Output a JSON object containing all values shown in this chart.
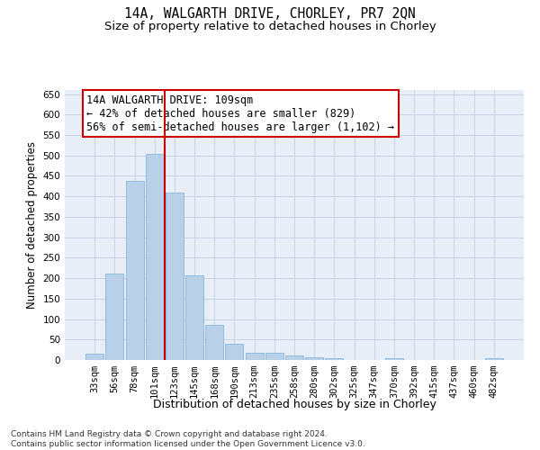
{
  "title": "14A, WALGARTH DRIVE, CHORLEY, PR7 2QN",
  "subtitle": "Size of property relative to detached houses in Chorley",
  "xlabel": "Distribution of detached houses by size in Chorley",
  "ylabel": "Number of detached properties",
  "categories": [
    "33sqm",
    "56sqm",
    "78sqm",
    "101sqm",
    "123sqm",
    "145sqm",
    "168sqm",
    "190sqm",
    "213sqm",
    "235sqm",
    "258sqm",
    "280sqm",
    "302sqm",
    "325sqm",
    "347sqm",
    "370sqm",
    "392sqm",
    "415sqm",
    "437sqm",
    "460sqm",
    "482sqm"
  ],
  "values": [
    15,
    212,
    437,
    503,
    410,
    207,
    85,
    39,
    18,
    17,
    11,
    6,
    5,
    0,
    0,
    5,
    0,
    0,
    0,
    0,
    5
  ],
  "bar_color": "#b8d0e8",
  "bar_edge_color": "#7aafd4",
  "grid_color": "#c8d4e4",
  "background_color": "#e8eef8",
  "vline_x_index": 3.5,
  "vline_color": "#cc0000",
  "annotation_text": "14A WALGARTH DRIVE: 109sqm\n← 42% of detached houses are smaller (829)\n56% of semi-detached houses are larger (1,102) →",
  "annotation_box_color": "#ffffff",
  "annotation_box_edge": "#cc0000",
  "ylim": [
    0,
    660
  ],
  "yticks": [
    0,
    50,
    100,
    150,
    200,
    250,
    300,
    350,
    400,
    450,
    500,
    550,
    600,
    650
  ],
  "footer": "Contains HM Land Registry data © Crown copyright and database right 2024.\nContains public sector information licensed under the Open Government Licence v3.0.",
  "title_fontsize": 10.5,
  "subtitle_fontsize": 9.5,
  "xlabel_fontsize": 9,
  "ylabel_fontsize": 8.5,
  "tick_fontsize": 7.5,
  "annotation_fontsize": 8.5,
  "footer_fontsize": 6.5
}
